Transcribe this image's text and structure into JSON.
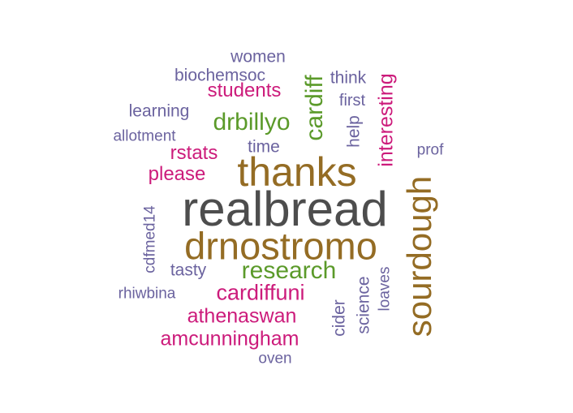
{
  "colors": {
    "gray": "#4d4d4d",
    "brown": "#946c24",
    "green": "#5b9a2a",
    "magenta": "#cc1b7b",
    "purple": "#6b639f"
  },
  "words": {
    "realbread": "realbread",
    "drnostromo": "drnostromo",
    "thanks": "thanks",
    "sourdough": "sourdough",
    "research": "research",
    "drbillyo": "drbillyo",
    "cardiff": "cardiff",
    "cardiffuni": "cardiffuni",
    "athenaswan": "athenaswan",
    "amcunningham": "amcunningham",
    "students": "students",
    "interesting": "interesting",
    "rstats": "rstats",
    "please": "please",
    "women": "women",
    "biochemsoc": "biochemsoc",
    "think": "think",
    "first": "first",
    "learning": "learning",
    "allotment": "allotment",
    "time": "time",
    "help": "help",
    "prof": "prof",
    "cdfmed14": "cdfmed14",
    "tasty": "tasty",
    "rhiwbina": "rhiwbina",
    "cider": "cider",
    "science": "science",
    "loaves": "loaves",
    "oven": "oven"
  }
}
